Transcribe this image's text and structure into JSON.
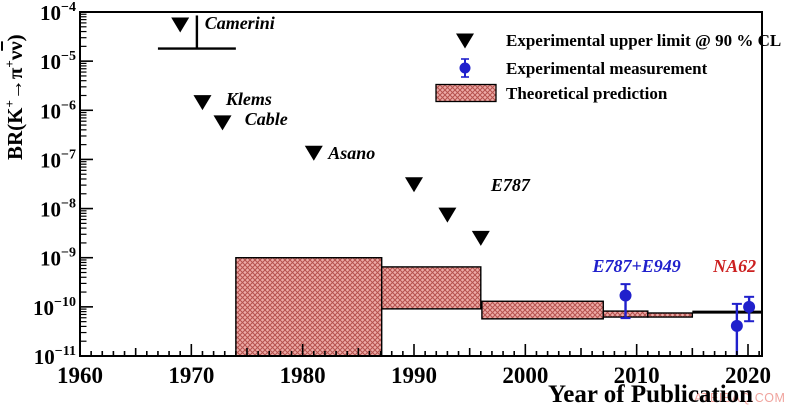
{
  "figure": {
    "y_axis_title_parts": [
      {
        "text": "BR(K"
      },
      {
        "text": "+",
        "style": "sup"
      },
      {
        "text": "→π"
      },
      {
        "text": "+",
        "style": "sup"
      },
      {
        "text": "ν"
      },
      {
        "text": "ν",
        "style": "overline"
      },
      {
        "text": ")"
      }
    ],
    "watermark": {
      "text": "ATEIBAQ.COM",
      "color": "#f0a49e"
    }
  },
  "chart_data": {
    "type": "scatter",
    "title": "",
    "xlabel": "Year of Publication",
    "ylabel": "BR(K+ → π+ ν ν̄)",
    "x_axis": {
      "min": 1960,
      "max": 2021.3,
      "major_tick_years": [
        1960,
        1970,
        1980,
        1990,
        2000,
        2010,
        2020
      ],
      "medium_tick_step": 5,
      "minor_tick_step": 1
    },
    "y_axis": {
      "scale": "log",
      "min": 1e-11,
      "max": 0.0001,
      "tick_exponents": [
        -4,
        -5,
        -6,
        -7,
        -8,
        -9,
        -10,
        -11
      ]
    },
    "grid": false,
    "upper_limits": [
      {
        "experiment": "Camerini",
        "year": 1969.0,
        "br": 5.7e-05
      },
      {
        "experiment": "Klems",
        "year": 1971.0,
        "br": 1.5e-06
      },
      {
        "experiment": "Cable",
        "year": 1972.8,
        "br": 5.8e-07
      },
      {
        "experiment": "Asano",
        "year": 1981.0,
        "br": 1.4e-07
      },
      {
        "experiment": "E787",
        "year": 1990.0,
        "br": 3.2e-08
      },
      {
        "experiment": "E787",
        "year": 1993.0,
        "br": 7.7e-09
      },
      {
        "experiment": "E787",
        "year": 1996.0,
        "br": 2.6e-09
      }
    ],
    "camerini_marker_line": {
      "year": 1970.5,
      "br_top": 8.5e-05,
      "br_bottom": 1.8e-05,
      "cap_year_start": 1967.0,
      "cap_year_end": 1974.0
    },
    "measurements": [
      {
        "experiment": "E787+E949",
        "year": 2009.0,
        "br": 1.7e-10,
        "br_high": 2.9e-10,
        "br_low": 5.9e-11
      },
      {
        "experiment": "NA62",
        "year": 2019.0,
        "br": 4.1e-11,
        "br_high": 1.15e-10,
        "br_low": 1.05e-11
      },
      {
        "experiment": "NA62",
        "year": 2020.1,
        "br": 1e-10,
        "br_high": 1.6e-10,
        "br_low": 5.1e-11
      }
    ],
    "theory_boxes": [
      {
        "year_start": 1974.0,
        "year_end": 1987.1,
        "br_low": 1e-11,
        "br_high": 1e-09
      },
      {
        "year_start": 1987.1,
        "year_end": 1996.0,
        "br_low": 9.1e-11,
        "br_high": 6.5e-10
      },
      {
        "year_start": 1996.1,
        "year_end": 2007.0,
        "br_low": 5.7e-11,
        "br_high": 1.3e-10
      },
      {
        "year_start": 2007.0,
        "year_end": 2011.0,
        "br_low": 6.2e-11,
        "br_high": 8.2e-11
      },
      {
        "year_start": 2011.0,
        "year_end": 2015.0,
        "br_low": 6.2e-11,
        "br_high": 7.5e-11
      }
    ],
    "sm_prediction_line": {
      "year_start": 2015.0,
      "year_end": 2021.3,
      "br": 7.8e-11
    },
    "annotations": [
      {
        "text": "Camerini",
        "year": 1971.2,
        "br": 6e-05,
        "color": "#000000",
        "anchor": "start"
      },
      {
        "text": "Klems",
        "year": 1973.1,
        "br": 1.7e-06,
        "color": "#000000",
        "anchor": "start"
      },
      {
        "text": "Cable",
        "year": 1974.8,
        "br": 6.6e-07,
        "color": "#000000",
        "anchor": "start"
      },
      {
        "text": "Asano",
        "year": 1982.3,
        "br": 1.35e-07,
        "color": "#000000",
        "anchor": "start"
      },
      {
        "text": "E787",
        "year": 1996.9,
        "br": 3e-08,
        "color": "#000000",
        "anchor": "start"
      },
      {
        "text": "E787+E949",
        "year": 2010.0,
        "br": 6.8e-10,
        "color": "#2020cc",
        "anchor": "middle"
      },
      {
        "text": "NA62",
        "year": 2018.8,
        "br": 6.8e-10,
        "color": "#cc2020",
        "anchor": "middle"
      }
    ],
    "legend": {
      "position": "top-right",
      "items": [
        {
          "marker": "upper-limit-triangle",
          "label": "Experimental upper limit @ 90 % CL"
        },
        {
          "marker": "measurement-point",
          "label": "Experimental measurement"
        },
        {
          "marker": "theory-box",
          "label": "Theoretical prediction"
        }
      ]
    },
    "colors": {
      "limit": "#000000",
      "measurement": "#2020cc",
      "theory_fill": "#edaba7",
      "theory_hatch": "#b4524e",
      "na62_label": "#cc2020",
      "frame": "#000000"
    }
  }
}
